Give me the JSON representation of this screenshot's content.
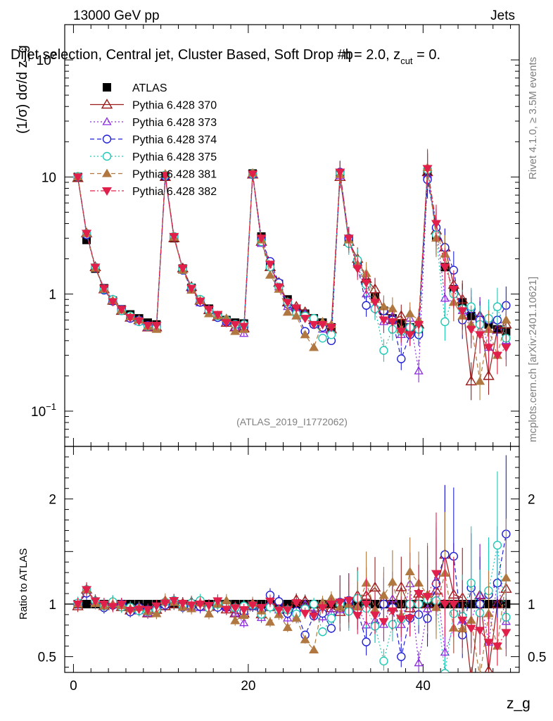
{
  "header": {
    "left_label": "13000 GeV pp",
    "right_label": "Jets",
    "title_prefix": "Dijet selection, Central jet, Cluster Based, Soft Drop #b",
    "title_mid": "= 2.0, z",
    "title_sub": "cut",
    "title_suffix": " = 0.",
    "eta_glyph": "η"
  },
  "side": {
    "rivet": "Rivet 4.1.0, ≥ 3.5M events",
    "mcplots": "mcplots.cern.ch [arXiv:2401.10621]"
  },
  "chart_data": {
    "type": "scatter",
    "title": "Dijet selection, Central jet, Cluster Based, Soft Drop",
    "xlabel": "z_g",
    "ylabel": "(1/σ) dσ/d z_g",
    "ratio_ylabel": "Ratio to ATLAS",
    "analysis_id": "(ATLAS_2019_I1772062)",
    "xlim": [
      -1,
      51
    ],
    "ylim_log": [
      0.05,
      200
    ],
    "ratio_ylim": [
      0.35,
      2.5
    ],
    "xticks": [
      "0",
      "20",
      "40"
    ],
    "yticks_top": [
      "10^-1",
      "1",
      "10",
      "10^2"
    ],
    "yticks_ratio": [
      "0.5",
      "1",
      "2"
    ],
    "x": [
      0.5,
      1.5,
      2.5,
      3.5,
      4.5,
      5.5,
      6.5,
      7.5,
      8.5,
      9.5,
      10.5,
      11.5,
      12.5,
      13.5,
      14.5,
      15.5,
      16.5,
      17.5,
      18.5,
      19.5,
      20.5,
      21.5,
      22.5,
      23.5,
      24.5,
      25.5,
      26.5,
      27.5,
      28.5,
      29.5,
      30.5,
      31.5,
      32.5,
      33.5,
      34.5,
      35.5,
      36.5,
      37.5,
      38.5,
      39.5,
      40.5,
      41.5,
      42.5,
      43.5,
      44.5,
      45.5,
      46.5,
      47.5,
      48.5,
      49.5
    ],
    "series": [
      {
        "name": "ATLAS",
        "color": "#000000",
        "marker": "square-filled",
        "line": "none",
        "values": [
          10,
          2.9,
          1.65,
          1.12,
          0.88,
          0.74,
          0.67,
          0.62,
          0.57,
          0.55,
          10.2,
          3.0,
          1.65,
          1.13,
          0.87,
          0.75,
          0.65,
          0.6,
          0.57,
          0.56,
          10.7,
          3.1,
          1.75,
          1.22,
          0.9,
          0.75,
          0.68,
          0.62,
          0.57,
          0.52,
          10.8,
          2.9,
          1.85,
          1.25,
          0.95,
          0.72,
          0.62,
          0.56,
          0.52,
          0.5,
          11,
          3.1,
          1.7,
          1.1,
          0.85,
          0.65,
          0.6,
          0.55,
          0.5,
          0.48
        ]
      },
      {
        "name": "Pythia 6.428 370",
        "color": "#9b1b1b",
        "marker": "triangle-up-open",
        "line": "solid",
        "values": [
          9.8,
          3.3,
          1.7,
          1.1,
          0.88,
          0.72,
          0.63,
          0.6,
          0.52,
          0.52,
          10,
          3.0,
          1.66,
          1.15,
          0.88,
          0.73,
          0.64,
          0.57,
          0.52,
          0.51,
          10.5,
          2.8,
          1.7,
          1.25,
          0.85,
          0.78,
          0.7,
          0.6,
          0.55,
          0.5,
          10,
          2.8,
          2.0,
          1.35,
          1.1,
          0.75,
          0.6,
          0.65,
          0.5,
          0.55,
          11,
          3.5,
          2.5,
          1.2,
          0.9,
          0.18,
          0.65,
          0.2,
          0.5,
          0.55
        ]
      },
      {
        "name": "Pythia 6.428 373",
        "color": "#8a2be2",
        "marker": "triangle-up-open-small",
        "line": "dotted",
        "values": [
          10,
          3.3,
          1.68,
          1.12,
          0.9,
          0.73,
          0.64,
          0.58,
          0.52,
          0.5,
          10.3,
          3.1,
          1.62,
          1.1,
          0.84,
          0.74,
          0.66,
          0.58,
          0.52,
          0.46,
          10.5,
          2.7,
          1.78,
          1.15,
          0.78,
          0.65,
          0.68,
          0.57,
          0.5,
          0.48,
          10.2,
          2.8,
          1.8,
          1.0,
          0.8,
          0.58,
          0.65,
          0.45,
          0.62,
          0.22,
          10.5,
          3.8,
          0.92,
          0.85,
          0.72,
          0.55,
          0.65,
          0.35,
          0.6,
          0.4
        ]
      },
      {
        "name": "Pythia 6.428 374",
        "color": "#1f1fd6",
        "marker": "circle-open",
        "line": "dashed",
        "values": [
          10,
          3.2,
          1.68,
          1.08,
          0.87,
          0.74,
          0.62,
          0.6,
          0.54,
          0.53,
          10.1,
          3.1,
          1.6,
          1.1,
          0.85,
          0.72,
          0.63,
          0.58,
          0.55,
          0.52,
          10.5,
          2.9,
          1.9,
          1.25,
          0.82,
          0.7,
          0.48,
          0.55,
          0.52,
          0.4,
          11,
          3.0,
          1.75,
          0.8,
          0.75,
          0.72,
          0.6,
          0.28,
          0.45,
          0.45,
          9.5,
          3.7,
          2.5,
          1.6,
          0.6,
          0.75,
          0.6,
          0.6,
          0.6,
          0.8
        ]
      },
      {
        "name": "Pythia 6.428 375",
        "color": "#20c9b5",
        "marker": "circle-open",
        "line": "dotted",
        "values": [
          10.1,
          3.3,
          1.7,
          1.1,
          0.9,
          0.72,
          0.65,
          0.58,
          0.53,
          0.52,
          10.4,
          3.1,
          1.62,
          1.14,
          0.9,
          0.72,
          0.65,
          0.6,
          0.55,
          0.55,
          10.6,
          2.8,
          1.7,
          1.15,
          0.85,
          0.68,
          0.65,
          0.62,
          0.42,
          0.45,
          10.8,
          2.7,
          1.95,
          1.2,
          0.75,
          0.33,
          0.5,
          0.48,
          0.52,
          0.5,
          11.5,
          3.2,
          0.58,
          1.0,
          0.75,
          0.78,
          0.55,
          0.62,
          0.78,
          0.42
        ]
      },
      {
        "name": "Pythia 6.428 381",
        "color": "#b07840",
        "marker": "triangle-up-filled",
        "line": "dashed",
        "values": [
          10,
          3.3,
          1.66,
          1.1,
          0.88,
          0.73,
          0.64,
          0.6,
          0.53,
          0.5,
          10.6,
          3.05,
          1.6,
          1.08,
          0.88,
          0.68,
          0.65,
          0.62,
          0.48,
          0.5,
          10.8,
          2.9,
          1.45,
          1.1,
          0.7,
          0.65,
          0.45,
          0.35,
          0.58,
          0.55,
          10.5,
          2.9,
          1.8,
          1.5,
          0.9,
          0.78,
          0.75,
          0.5,
          0.68,
          0.6,
          12,
          3.0,
          2.2,
          0.85,
          0.65,
          0.55,
          0.18,
          0.5,
          0.3,
          0.6
        ]
      },
      {
        "name": "Pythia 6.428 382",
        "color": "#e0204a",
        "marker": "triangle-down-filled",
        "line": "dashdot",
        "values": [
          10,
          3.3,
          1.7,
          1.12,
          0.86,
          0.74,
          0.63,
          0.59,
          0.54,
          0.54,
          10.3,
          3.1,
          1.66,
          1.12,
          0.87,
          0.74,
          0.67,
          0.57,
          0.55,
          0.53,
          10.6,
          3.0,
          1.8,
          1.15,
          0.85,
          0.76,
          0.62,
          0.55,
          0.55,
          0.52,
          11,
          3.0,
          1.65,
          1.25,
          0.85,
          0.6,
          0.58,
          0.48,
          0.45,
          0.55,
          11.8,
          4.0,
          1.7,
          1.1,
          0.72,
          0.5,
          0.45,
          0.35,
          0.3,
          0.35
        ]
      }
    ]
  }
}
